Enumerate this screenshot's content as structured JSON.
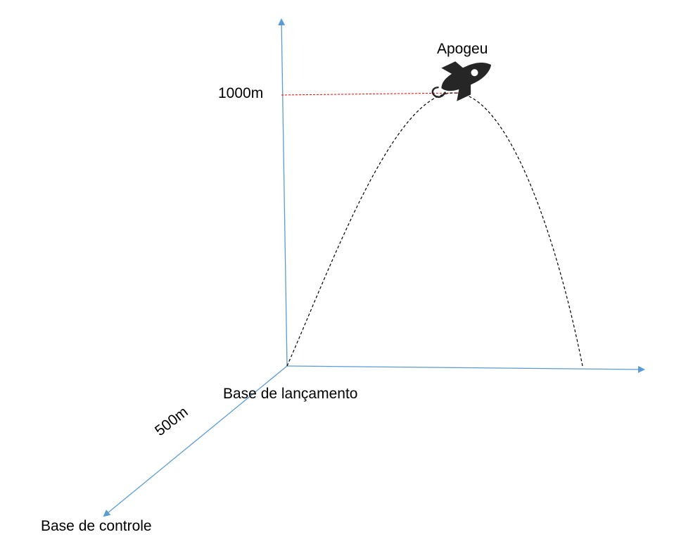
{
  "labels": {
    "apogee": "Apogeu",
    "altitude": "1000m",
    "launch_base": "Base de lançamento",
    "control_base": "Base de controle",
    "distance": "500m"
  },
  "icons": {
    "rocket": "rocket-icon"
  },
  "colors": {
    "axis": "#5b9bd5",
    "trajectory": "#000000",
    "altitude_line": "#ff0000",
    "rocket": "#262626",
    "text": "#000000"
  }
}
